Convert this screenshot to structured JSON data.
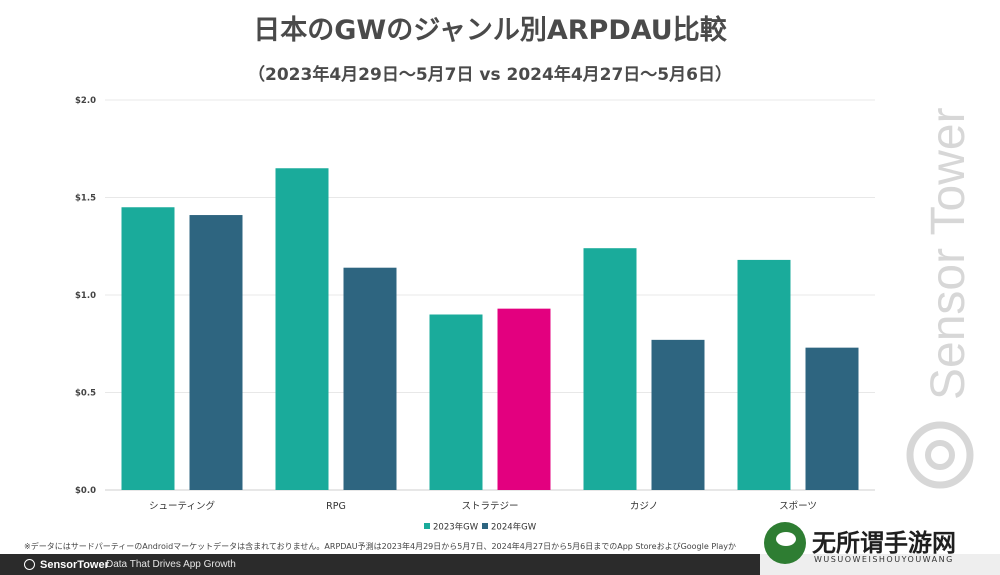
{
  "chart_data": {
    "type": "bar",
    "title": "日本のGWのジャンル別ARPDAU比較",
    "subtitle": "（2023年4月29日〜5月7日 vs 2024年4月27日〜5月6日）",
    "categories": [
      "シューティング",
      "RPG",
      "ストラテジー",
      "カジノ",
      "スポーツ"
    ],
    "series": [
      {
        "name": "2023年GW",
        "color": "#1aab9b",
        "values": [
          1.45,
          1.65,
          0.9,
          1.24,
          1.18
        ]
      },
      {
        "name": "2024年GW",
        "color": "#2e6580",
        "values": [
          1.41,
          1.14,
          0.93,
          0.77,
          0.73
        ]
      }
    ],
    "highlight": {
      "series": 1,
      "index": 2,
      "color": "#e3007f"
    },
    "ylim": [
      0,
      2.0
    ],
    "yticks": [
      0,
      0.5,
      1.0,
      1.5,
      2.0
    ],
    "ytick_labels": [
      "$0.0",
      "$0.5",
      "$1.0",
      "$1.5",
      "$2.0"
    ],
    "grid": true,
    "legend_position": "bottom-center",
    "xlabel": "",
    "ylabel": ""
  },
  "footnote": "※データにはサードパーティーのAndroidマーケットデータは含まれておりません。ARPDAU予測は2023年4月29日から5月7日、2024年4月27日から5月6日までのApp StoreおよびGoogle Playか",
  "footer": {
    "brand": "SensorTower",
    "tagline": "Data That Drives App Growth"
  },
  "watermark": {
    "text": "Sensor Tower"
  },
  "site_mark": {
    "cn": "无所谓手游网",
    "en": "WUSUOWEISHOUYOUWANG"
  }
}
